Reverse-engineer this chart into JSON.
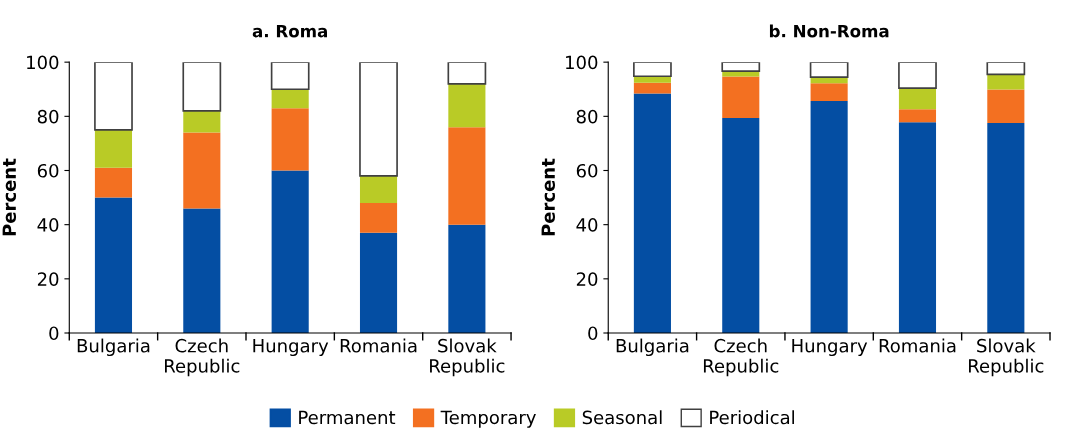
{
  "chart_data": [
    {
      "type": "bar",
      "title": "a. Roma",
      "ylabel": "Percent",
      "stacked": true,
      "categories": [
        "Bulgaria",
        "Czech Republic",
        "Hungary",
        "Romania",
        "Slovak Republic"
      ],
      "ylim": [
        0,
        100
      ],
      "yticks": [
        0,
        20,
        40,
        60,
        80,
        100
      ],
      "grid": false,
      "legend": "bottom",
      "series": [
        {
          "name": "Permanent",
          "color": "#044ea3",
          "values": [
            50,
            46,
            60,
            37,
            40
          ]
        },
        {
          "name": "Temporary",
          "color": "#f37021",
          "values": [
            11,
            28,
            23,
            11,
            36
          ]
        },
        {
          "name": "Seasonal",
          "color": "#b9cb26",
          "values": [
            14,
            8,
            7,
            10,
            16
          ]
        },
        {
          "name": "Periodical",
          "color": "#ffffff",
          "values": [
            25,
            18,
            10,
            42,
            8
          ]
        }
      ]
    },
    {
      "type": "bar",
      "title": "b. Non-Roma",
      "ylabel": "Percent",
      "stacked": true,
      "categories": [
        "Bulgaria",
        "Czech Republic",
        "Hungary",
        "Romania",
        "Slovak Republic"
      ],
      "ylim": [
        0,
        100
      ],
      "yticks": [
        0,
        20,
        40,
        60,
        80,
        100
      ],
      "grid": false,
      "series": [
        {
          "color": "#044ea3",
          "values": [
            88.4,
            79.4,
            85.7,
            77.8,
            77.5
          ]
        },
        {
          "color": "#f37021",
          "values": [
            4,
            15.3,
            6.5,
            4.8,
            12.4
          ]
        },
        {
          "color": "#b9cb26",
          "values": [
            2.4,
            2,
            2.3,
            7.8,
            5.6
          ]
        },
        {
          "color": "#ffffff",
          "values": [
            5.2,
            3.3,
            5.5,
            9.6,
            4.5
          ]
        }
      ]
    }
  ]
}
